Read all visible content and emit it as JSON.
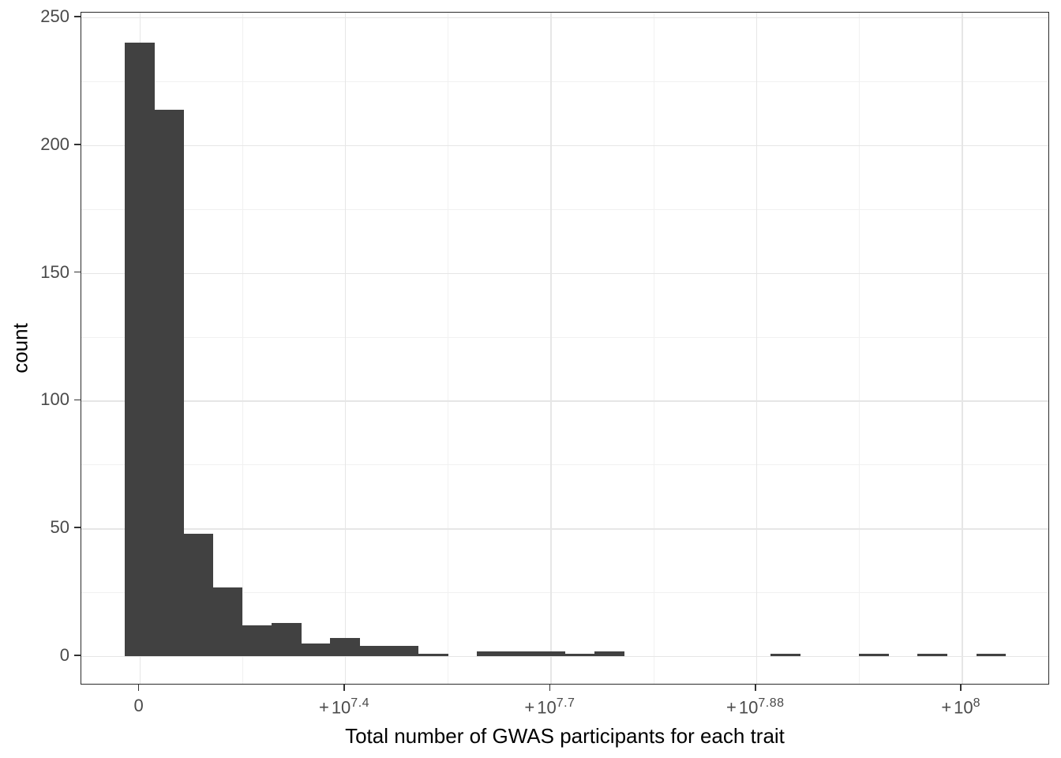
{
  "chart_data": {
    "type": "bar",
    "subtype": "histogram",
    "xlabel": "Total number of GWAS participants for each trait",
    "ylabel": "count",
    "bar_color": "#414141",
    "background_color": "#ffffff",
    "grid_major_color": "#e6e6e6",
    "grid_minor_color": "#f1f1f1",
    "panel_border_color": "#2b2b2b",
    "axis_text_color": "#4a4a4a",
    "axis_title_color": "#000000",
    "grid": "on",
    "legend": "none",
    "n_bins": 30,
    "bin_counts": [
      240,
      214,
      48,
      27,
      12,
      13,
      5,
      7,
      4,
      4,
      1,
      0,
      2,
      2,
      2,
      1,
      2,
      0,
      0,
      0,
      0,
      0,
      1,
      0,
      0,
      1,
      0,
      1,
      0,
      1
    ],
    "ylim": [
      0,
      250
    ],
    "y_ticks": [
      0,
      50,
      100,
      150,
      200,
      250
    ],
    "y_minor_ticks": [
      25,
      75,
      125,
      175,
      225
    ],
    "x_tick_labels": [
      {
        "text": "0",
        "prefix": "",
        "base": "0",
        "exp": "",
        "bin_center": 0.5
      },
      {
        "text": "+10^7.4",
        "prefix": "+",
        "base": "10",
        "exp": "7.4",
        "bin_center": 7.5
      },
      {
        "text": "+10^7.7",
        "prefix": "+",
        "base": "10",
        "exp": "7.7",
        "bin_center": 14.5
      },
      {
        "text": "+10^7.88",
        "prefix": "+",
        "base": "10",
        "exp": "7.88",
        "bin_center": 21.5
      },
      {
        "text": "+10^8",
        "prefix": "+",
        "base": "10",
        "exp": "8",
        "bin_center": 28.5
      }
    ]
  }
}
